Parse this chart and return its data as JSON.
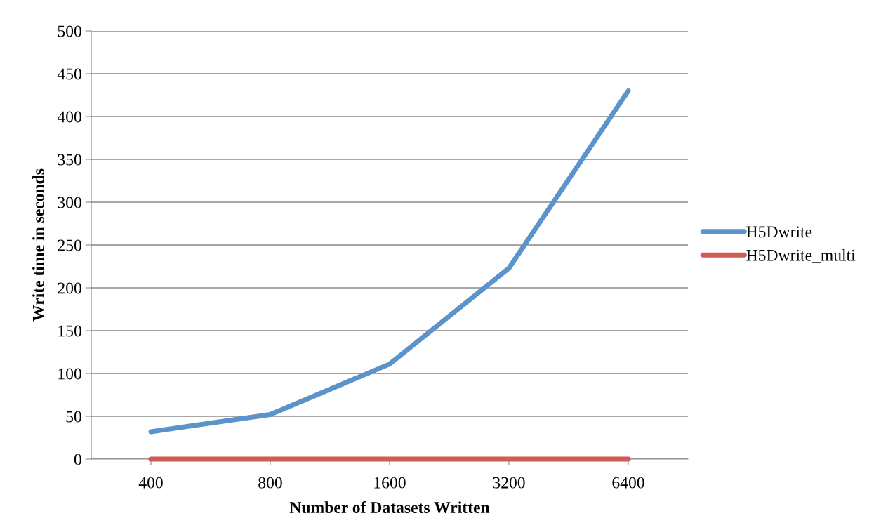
{
  "chart_data": {
    "type": "line",
    "xlabel": "Number of Datasets Written",
    "ylabel": "Write time in seconds",
    "categories": [
      "400",
      "800",
      "1600",
      "3200",
      "6400"
    ],
    "series": [
      {
        "name": "H5Dwrite",
        "color": "#5b93cb",
        "values": [
          32,
          52,
          111,
          223,
          430
        ]
      },
      {
        "name": "H5Dwrite_multi",
        "color": "#cd5c55",
        "values": [
          0,
          0,
          0,
          0,
          0
        ]
      }
    ],
    "ylim": [
      0,
      500
    ],
    "yticks": [
      0,
      50,
      100,
      150,
      200,
      250,
      300,
      350,
      400,
      450,
      500
    ],
    "grid": "y",
    "legend": "right",
    "marker": "none",
    "line_style": "solid"
  }
}
